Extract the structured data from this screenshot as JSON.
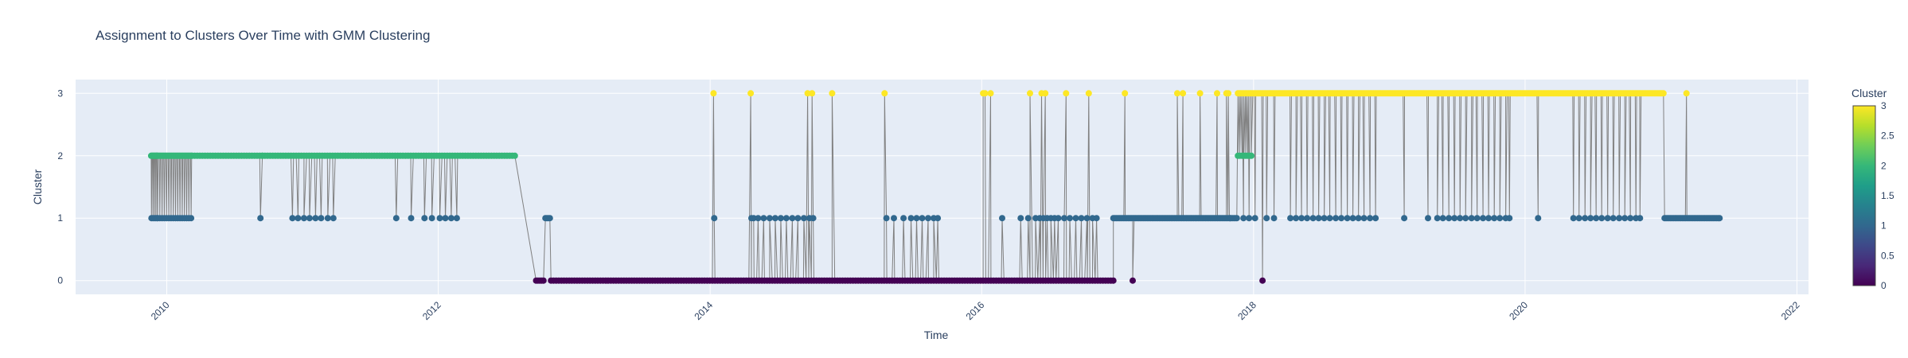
{
  "chart_data": {
    "type": "scatter",
    "mode": "lines+markers",
    "title": "Assignment to Clusters Over Time with GMM Clustering",
    "xlabel": "Time",
    "ylabel": "Cluster",
    "xlim": [
      "2009-05-01",
      "2022-02-01"
    ],
    "ylim": [
      -0.22,
      3.22
    ],
    "x_ticks": [
      "2010",
      "2012",
      "2014",
      "2016",
      "2018",
      "2020",
      "2022"
    ],
    "y_ticks": [
      "0",
      "1",
      "2",
      "3"
    ],
    "colorbar": {
      "title": "Cluster",
      "colorscale": "Viridis",
      "range": [
        0,
        3
      ],
      "ticks": [
        "0",
        "0.5",
        "1",
        "1.5",
        "2",
        "2.5",
        "3"
      ]
    },
    "line_color": "#808080",
    "marker_colors": {
      "0": "#440154",
      "1": "#31688e",
      "2": "#35b779",
      "3": "#fde725"
    },
    "grid": true,
    "segments": [
      {
        "start": "2009-11-20",
        "end": "2009-12-06",
        "cluster": 2,
        "interleave": 1,
        "step_days": 2
      },
      {
        "start": "2009-12-06",
        "end": "2010-03-10",
        "cluster": 2,
        "interleave": 1,
        "step_days": 3
      },
      {
        "start": "2010-03-10",
        "end": "2012-07-30",
        "cluster": 2,
        "step_days": 7
      },
      {
        "start": "2012-09-20",
        "end": "2012-10-10",
        "cluster": 0,
        "step_days": 5
      },
      {
        "start": "2012-10-15",
        "end": "2012-10-28",
        "cluster": 1,
        "step_days": 4
      },
      {
        "start": "2012-10-30",
        "end": "2016-12-20",
        "cluster": 0,
        "step_days": 7
      },
      {
        "start": "2016-12-20",
        "end": "2017-11-20",
        "cluster": 1,
        "step_days": 4
      },
      {
        "start": "2017-11-20",
        "end": "2021-01-10",
        "cluster": 3,
        "step_days": 4
      },
      {
        "start": "2021-01-10",
        "end": "2021-06-10",
        "cluster": 1,
        "step_days": 4
      }
    ],
    "points": [
      {
        "x": "2010-09-10",
        "y": 1
      },
      {
        "x": "2010-09-15",
        "y": 2
      },
      {
        "x": "2010-12-05",
        "y": 1
      },
      {
        "x": "2010-12-20",
        "y": 1
      },
      {
        "x": "2011-01-05",
        "y": 1
      },
      {
        "x": "2011-01-20",
        "y": 1
      },
      {
        "x": "2011-02-05",
        "y": 1
      },
      {
        "x": "2011-02-20",
        "y": 1
      },
      {
        "x": "2011-03-10",
        "y": 1
      },
      {
        "x": "2011-03-25",
        "y": 1
      },
      {
        "x": "2011-09-10",
        "y": 1
      },
      {
        "x": "2011-10-20",
        "y": 1
      },
      {
        "x": "2011-11-25",
        "y": 1
      },
      {
        "x": "2011-12-15",
        "y": 1
      },
      {
        "x": "2012-01-05",
        "y": 1
      },
      {
        "x": "2012-01-20",
        "y": 1
      },
      {
        "x": "2012-02-05",
        "y": 1
      },
      {
        "x": "2012-02-20",
        "y": 1
      },
      {
        "x": "2014-01-10",
        "y": 3
      },
      {
        "x": "2014-01-12",
        "y": 1
      },
      {
        "x": "2014-04-20",
        "y": 3
      },
      {
        "x": "2014-04-22",
        "y": 1
      },
      {
        "x": "2014-04-28",
        "y": 1
      },
      {
        "x": "2014-05-10",
        "y": 1
      },
      {
        "x": "2014-05-25",
        "y": 1
      },
      {
        "x": "2014-06-10",
        "y": 1
      },
      {
        "x": "2014-06-25",
        "y": 1
      },
      {
        "x": "2014-07-10",
        "y": 1
      },
      {
        "x": "2014-07-25",
        "y": 1
      },
      {
        "x": "2014-08-10",
        "y": 1
      },
      {
        "x": "2014-08-25",
        "y": 1
      },
      {
        "x": "2014-09-10",
        "y": 1
      },
      {
        "x": "2014-09-25",
        "y": 1
      },
      {
        "x": "2014-10-05",
        "y": 1
      },
      {
        "x": "2014-09-20",
        "y": 3
      },
      {
        "x": "2014-10-02",
        "y": 3
      },
      {
        "x": "2014-11-25",
        "y": 3
      },
      {
        "x": "2015-04-15",
        "y": 3
      },
      {
        "x": "2015-04-20",
        "y": 1
      },
      {
        "x": "2015-05-10",
        "y": 1
      },
      {
        "x": "2015-06-05",
        "y": 1
      },
      {
        "x": "2015-06-25",
        "y": 1
      },
      {
        "x": "2015-07-10",
        "y": 1
      },
      {
        "x": "2015-07-25",
        "y": 1
      },
      {
        "x": "2015-08-10",
        "y": 1
      },
      {
        "x": "2015-08-25",
        "y": 1
      },
      {
        "x": "2015-09-05",
        "y": 1
      },
      {
        "x": "2016-01-05",
        "y": 3
      },
      {
        "x": "2016-01-10",
        "y": 3
      },
      {
        "x": "2016-01-25",
        "y": 3
      },
      {
        "x": "2016-02-25",
        "y": 1
      },
      {
        "x": "2016-04-15",
        "y": 1
      },
      {
        "x": "2016-05-05",
        "y": 1
      },
      {
        "x": "2016-05-25",
        "y": 1
      },
      {
        "x": "2016-06-05",
        "y": 1
      },
      {
        "x": "2016-06-15",
        "y": 1
      },
      {
        "x": "2016-06-25",
        "y": 1
      },
      {
        "x": "2016-07-05",
        "y": 1
      },
      {
        "x": "2016-07-15",
        "y": 1
      },
      {
        "x": "2016-07-25",
        "y": 1
      },
      {
        "x": "2016-08-10",
        "y": 1
      },
      {
        "x": "2016-08-25",
        "y": 1
      },
      {
        "x": "2016-09-10",
        "y": 1
      },
      {
        "x": "2016-09-25",
        "y": 1
      },
      {
        "x": "2016-10-10",
        "y": 1
      },
      {
        "x": "2016-10-25",
        "y": 1
      },
      {
        "x": "2016-11-05",
        "y": 1
      },
      {
        "x": "2016-05-10",
        "y": 3
      },
      {
        "x": "2016-06-10",
        "y": 3
      },
      {
        "x": "2016-06-20",
        "y": 3
      },
      {
        "x": "2016-08-15",
        "y": 3
      },
      {
        "x": "2016-10-15",
        "y": 3
      },
      {
        "x": "2017-01-20",
        "y": 3
      },
      {
        "x": "2017-02-10",
        "y": 0
      },
      {
        "x": "2017-06-10",
        "y": 3
      },
      {
        "x": "2017-06-25",
        "y": 3
      },
      {
        "x": "2017-08-10",
        "y": 3
      },
      {
        "x": "2017-09-25",
        "y": 3
      },
      {
        "x": "2017-10-20",
        "y": 3
      },
      {
        "x": "2017-10-25",
        "y": 3
      },
      {
        "x": "2017-10-30",
        "y": 1
      },
      {
        "x": "2017-11-20",
        "y": 2
      },
      {
        "x": "2017-11-25",
        "y": 2
      },
      {
        "x": "2017-12-01",
        "y": 2
      },
      {
        "x": "2017-12-06",
        "y": 2
      },
      {
        "x": "2017-12-11",
        "y": 2
      },
      {
        "x": "2017-12-16",
        "y": 2
      },
      {
        "x": "2017-12-21",
        "y": 2
      },
      {
        "x": "2017-12-26",
        "y": 2
      },
      {
        "x": "2017-12-05",
        "y": 1
      },
      {
        "x": "2017-12-20",
        "y": 1
      },
      {
        "x": "2018-01-25",
        "y": 0
      },
      {
        "x": "2018-01-05",
        "y": 1
      },
      {
        "x": "2018-02-05",
        "y": 1
      },
      {
        "x": "2018-02-25",
        "y": 1
      },
      {
        "x": "2018-04-10",
        "y": 1
      },
      {
        "x": "2018-04-25",
        "y": 1
      },
      {
        "x": "2018-05-10",
        "y": 1
      },
      {
        "x": "2018-05-25",
        "y": 1
      },
      {
        "x": "2018-06-10",
        "y": 1
      },
      {
        "x": "2018-06-25",
        "y": 1
      },
      {
        "x": "2018-07-10",
        "y": 1
      },
      {
        "x": "2018-07-25",
        "y": 1
      },
      {
        "x": "2018-08-10",
        "y": 1
      },
      {
        "x": "2018-08-25",
        "y": 1
      },
      {
        "x": "2018-09-10",
        "y": 1
      },
      {
        "x": "2018-09-25",
        "y": 1
      },
      {
        "x": "2018-10-10",
        "y": 1
      },
      {
        "x": "2018-10-25",
        "y": 1
      },
      {
        "x": "2018-11-10",
        "y": 1
      },
      {
        "x": "2018-11-25",
        "y": 1
      },
      {
        "x": "2019-02-10",
        "y": 1
      },
      {
        "x": "2019-04-15",
        "y": 1
      },
      {
        "x": "2019-05-10",
        "y": 1
      },
      {
        "x": "2019-05-25",
        "y": 1
      },
      {
        "x": "2019-06-10",
        "y": 1
      },
      {
        "x": "2019-06-25",
        "y": 1
      },
      {
        "x": "2019-07-10",
        "y": 1
      },
      {
        "x": "2019-07-25",
        "y": 1
      },
      {
        "x": "2019-08-10",
        "y": 1
      },
      {
        "x": "2019-08-25",
        "y": 1
      },
      {
        "x": "2019-09-10",
        "y": 1
      },
      {
        "x": "2019-09-25",
        "y": 1
      },
      {
        "x": "2019-10-10",
        "y": 1
      },
      {
        "x": "2019-10-25",
        "y": 1
      },
      {
        "x": "2019-11-10",
        "y": 1
      },
      {
        "x": "2019-11-20",
        "y": 1
      },
      {
        "x": "2020-02-05",
        "y": 1
      },
      {
        "x": "2020-05-10",
        "y": 1
      },
      {
        "x": "2020-05-25",
        "y": 1
      },
      {
        "x": "2020-06-10",
        "y": 1
      },
      {
        "x": "2020-06-25",
        "y": 1
      },
      {
        "x": "2020-07-10",
        "y": 1
      },
      {
        "x": "2020-07-25",
        "y": 1
      },
      {
        "x": "2020-08-10",
        "y": 1
      },
      {
        "x": "2020-08-25",
        "y": 1
      },
      {
        "x": "2020-09-10",
        "y": 1
      },
      {
        "x": "2020-09-25",
        "y": 1
      },
      {
        "x": "2020-10-10",
        "y": 1
      },
      {
        "x": "2020-10-25",
        "y": 1
      },
      {
        "x": "2020-11-05",
        "y": 1
      },
      {
        "x": "2021-03-10",
        "y": 3
      }
    ]
  }
}
